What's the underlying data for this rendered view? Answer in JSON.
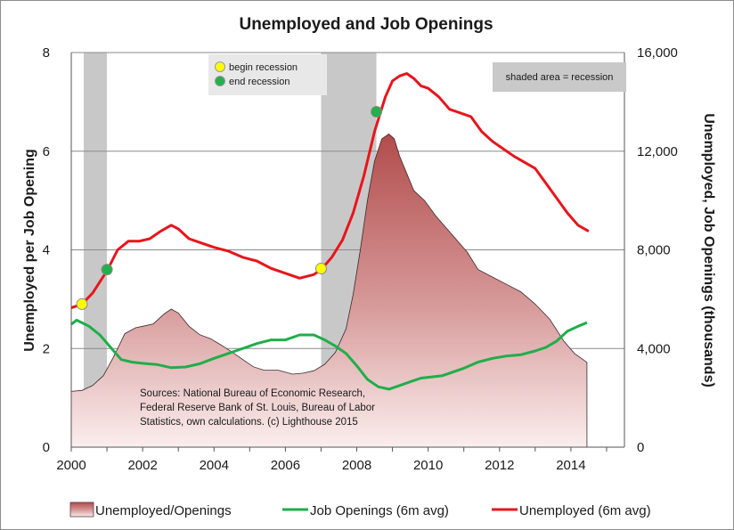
{
  "chart_data": {
    "type": "line",
    "title": "Unemployed and Job Openings",
    "ylabel_left": "Unemployed per Job Opening",
    "ylabel_right": "Unemployed, Job Openings (thousands)",
    "ylim_left": [
      0,
      8
    ],
    "ylim_right": [
      0,
      16000
    ],
    "xlim": [
      2000,
      2015.5
    ],
    "x_ticks": [
      "2000",
      "2002",
      "2004",
      "2006",
      "2008",
      "2010",
      "2012",
      "2014"
    ],
    "y_ticks_left": [
      "0",
      "2",
      "4",
      "6",
      "8"
    ],
    "y_ticks_right": [
      "0",
      "4,000",
      "8,000",
      "12,000",
      "16,000"
    ],
    "grid": true,
    "recessions": [
      [
        2000.35,
        2001.0
      ],
      [
        2007.0,
        2008.55
      ]
    ],
    "recession_note": "shaded area = recession",
    "marker_legend": [
      {
        "label": "begin recession",
        "color": "#ffff00"
      },
      {
        "label": "end recession",
        "color": "#22b04a"
      }
    ],
    "markers": [
      {
        "type": "begin",
        "x": 2000.3,
        "y": 2.9
      },
      {
        "type": "end",
        "x": 2001.0,
        "y": 3.6
      },
      {
        "type": "begin",
        "x": 2007.0,
        "y": 3.62
      },
      {
        "type": "end",
        "x": 2008.55,
        "y": 6.8
      }
    ],
    "source_lines": [
      "Sources: National Bureau of Economic Research,",
      "Federal Reserve Bank of St. Louis, Bureau of Labor",
      "Statistics, own calculations. (c) Lighthouse 2015"
    ],
    "series": [
      {
        "name": "Unemployed/Openings",
        "axis": "left",
        "style": "area",
        "color": "#b85858",
        "x": [
          2000.0,
          2000.3,
          2000.6,
          2000.9,
          2001.2,
          2001.5,
          2001.8,
          2002.0,
          2002.3,
          2002.6,
          2002.8,
          2003.0,
          2003.3,
          2003.6,
          2003.9,
          2004.2,
          2004.5,
          2004.8,
          2005.1,
          2005.4,
          2005.8,
          2006.2,
          2006.5,
          2006.8,
          2007.1,
          2007.4,
          2007.7,
          2007.9,
          2008.1,
          2008.3,
          2008.5,
          2008.7,
          2008.9,
          2009.05,
          2009.2,
          2009.4,
          2009.6,
          2009.9,
          2010.2,
          2010.5,
          2010.8,
          2011.1,
          2011.4,
          2011.8,
          2012.2,
          2012.6,
          2013.0,
          2013.4,
          2013.8,
          2014.1,
          2014.45
        ],
        "values": [
          1.13,
          1.15,
          1.25,
          1.45,
          1.85,
          2.3,
          2.42,
          2.45,
          2.5,
          2.7,
          2.8,
          2.72,
          2.45,
          2.28,
          2.2,
          2.07,
          1.93,
          1.78,
          1.63,
          1.56,
          1.56,
          1.48,
          1.5,
          1.55,
          1.68,
          1.92,
          2.4,
          3.1,
          4.0,
          5.0,
          5.8,
          6.25,
          6.35,
          6.25,
          5.9,
          5.55,
          5.2,
          5.0,
          4.7,
          4.45,
          4.2,
          3.95,
          3.6,
          3.45,
          3.3,
          3.15,
          2.9,
          2.6,
          2.15,
          1.9,
          1.72
        ]
      },
      {
        "name": "Job Openings (6m avg)",
        "axis": "right",
        "style": "line",
        "color": "#1fae4a",
        "x": [
          2000.0,
          2000.15,
          2000.5,
          2000.8,
          2001.1,
          2001.4,
          2001.7,
          2002.0,
          2002.4,
          2002.8,
          2003.2,
          2003.6,
          2004.0,
          2004.3,
          2004.6,
          2004.9,
          2005.2,
          2005.6,
          2006.0,
          2006.4,
          2006.8,
          2007.1,
          2007.4,
          2007.7,
          2008.0,
          2008.3,
          2008.6,
          2008.9,
          2009.2,
          2009.5,
          2009.8,
          2010.1,
          2010.4,
          2010.7,
          2011.0,
          2011.4,
          2011.8,
          2012.2,
          2012.6,
          2013.0,
          2013.3,
          2013.6,
          2013.9,
          2014.2,
          2014.45
        ],
        "values": [
          4980,
          5150,
          4900,
          4550,
          4050,
          3550,
          3450,
          3400,
          3350,
          3220,
          3250,
          3380,
          3600,
          3750,
          3900,
          4050,
          4200,
          4350,
          4350,
          4550,
          4550,
          4350,
          4100,
          3800,
          3300,
          2750,
          2450,
          2350,
          2500,
          2650,
          2800,
          2850,
          2900,
          3050,
          3200,
          3450,
          3600,
          3700,
          3750,
          3900,
          4050,
          4300,
          4700,
          4900,
          5050
        ]
      },
      {
        "name": "Unemployed (6m avg)",
        "axis": "right",
        "style": "line",
        "color": "#e8141c",
        "x": [
          2000.0,
          2000.3,
          2000.6,
          2001.0,
          2001.3,
          2001.6,
          2001.9,
          2002.2,
          2002.5,
          2002.8,
          2003.0,
          2003.3,
          2003.6,
          2004.0,
          2004.4,
          2004.8,
          2005.2,
          2005.6,
          2006.0,
          2006.4,
          2006.8,
          2007.0,
          2007.3,
          2007.6,
          2007.9,
          2008.2,
          2008.5,
          2008.8,
          2009.0,
          2009.2,
          2009.4,
          2009.6,
          2009.8,
          2010.0,
          2010.3,
          2010.6,
          2010.9,
          2011.2,
          2011.5,
          2011.8,
          2012.1,
          2012.4,
          2012.7,
          2013.0,
          2013.3,
          2013.6,
          2013.9,
          2014.2,
          2014.5
        ],
        "values": [
          5650,
          5800,
          6250,
          7150,
          8000,
          8350,
          8350,
          8450,
          8750,
          9000,
          8850,
          8450,
          8300,
          8100,
          7950,
          7700,
          7550,
          7250,
          7050,
          6850,
          7000,
          7200,
          7700,
          8400,
          9500,
          11000,
          12800,
          14200,
          14850,
          15050,
          15150,
          14950,
          14650,
          14550,
          14200,
          13700,
          13550,
          13400,
          12800,
          12400,
          12100,
          11800,
          11550,
          11300,
          10700,
          10100,
          9500,
          9000,
          8750
        ]
      }
    ]
  }
}
